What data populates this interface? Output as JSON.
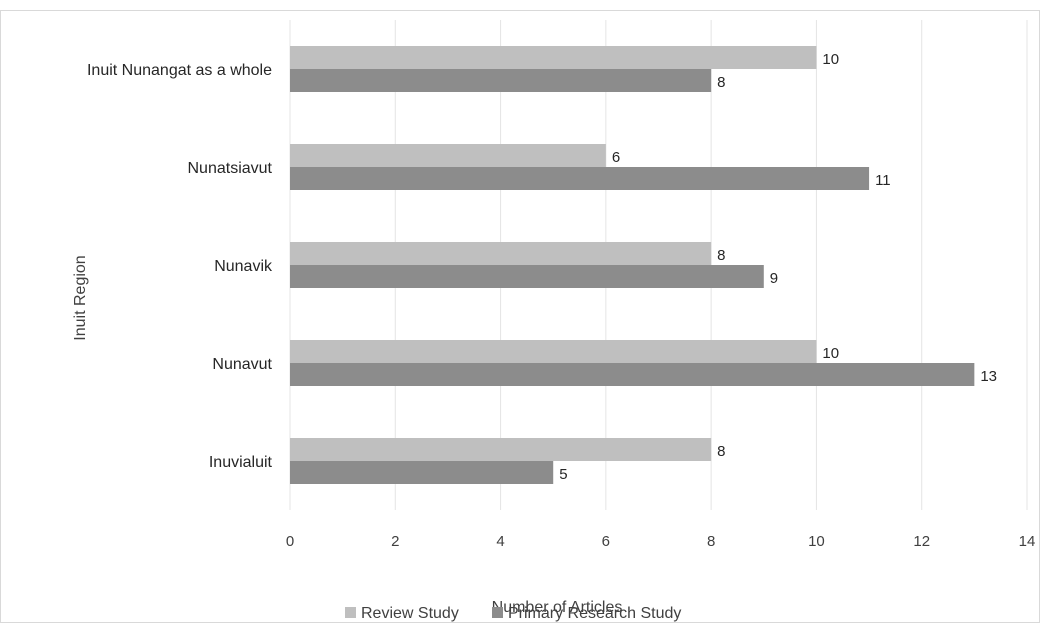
{
  "chart_data": {
    "type": "bar",
    "orientation": "horizontal",
    "categories": [
      "Inuit Nunangat as a whole",
      "Nunatsiavut",
      "Nunavik",
      "Nunavut",
      "Inuvialuit"
    ],
    "series": [
      {
        "name": "Review Study",
        "values": [
          10,
          6,
          8,
          10,
          8
        ],
        "color": "#bfbfbf"
      },
      {
        "name": "Primary Research Study",
        "values": [
          8,
          11,
          9,
          13,
          5
        ],
        "color": "#8c8c8c"
      }
    ],
    "xlabel": "Number of Articles",
    "ylabel": "Inuit Region",
    "xlim": [
      0,
      14
    ],
    "x_ticks": [
      "0",
      "2",
      "4",
      "6",
      "8",
      "10",
      "12",
      "14"
    ],
    "grid": "vertical",
    "legend_position": "bottom",
    "data_labels": true
  }
}
